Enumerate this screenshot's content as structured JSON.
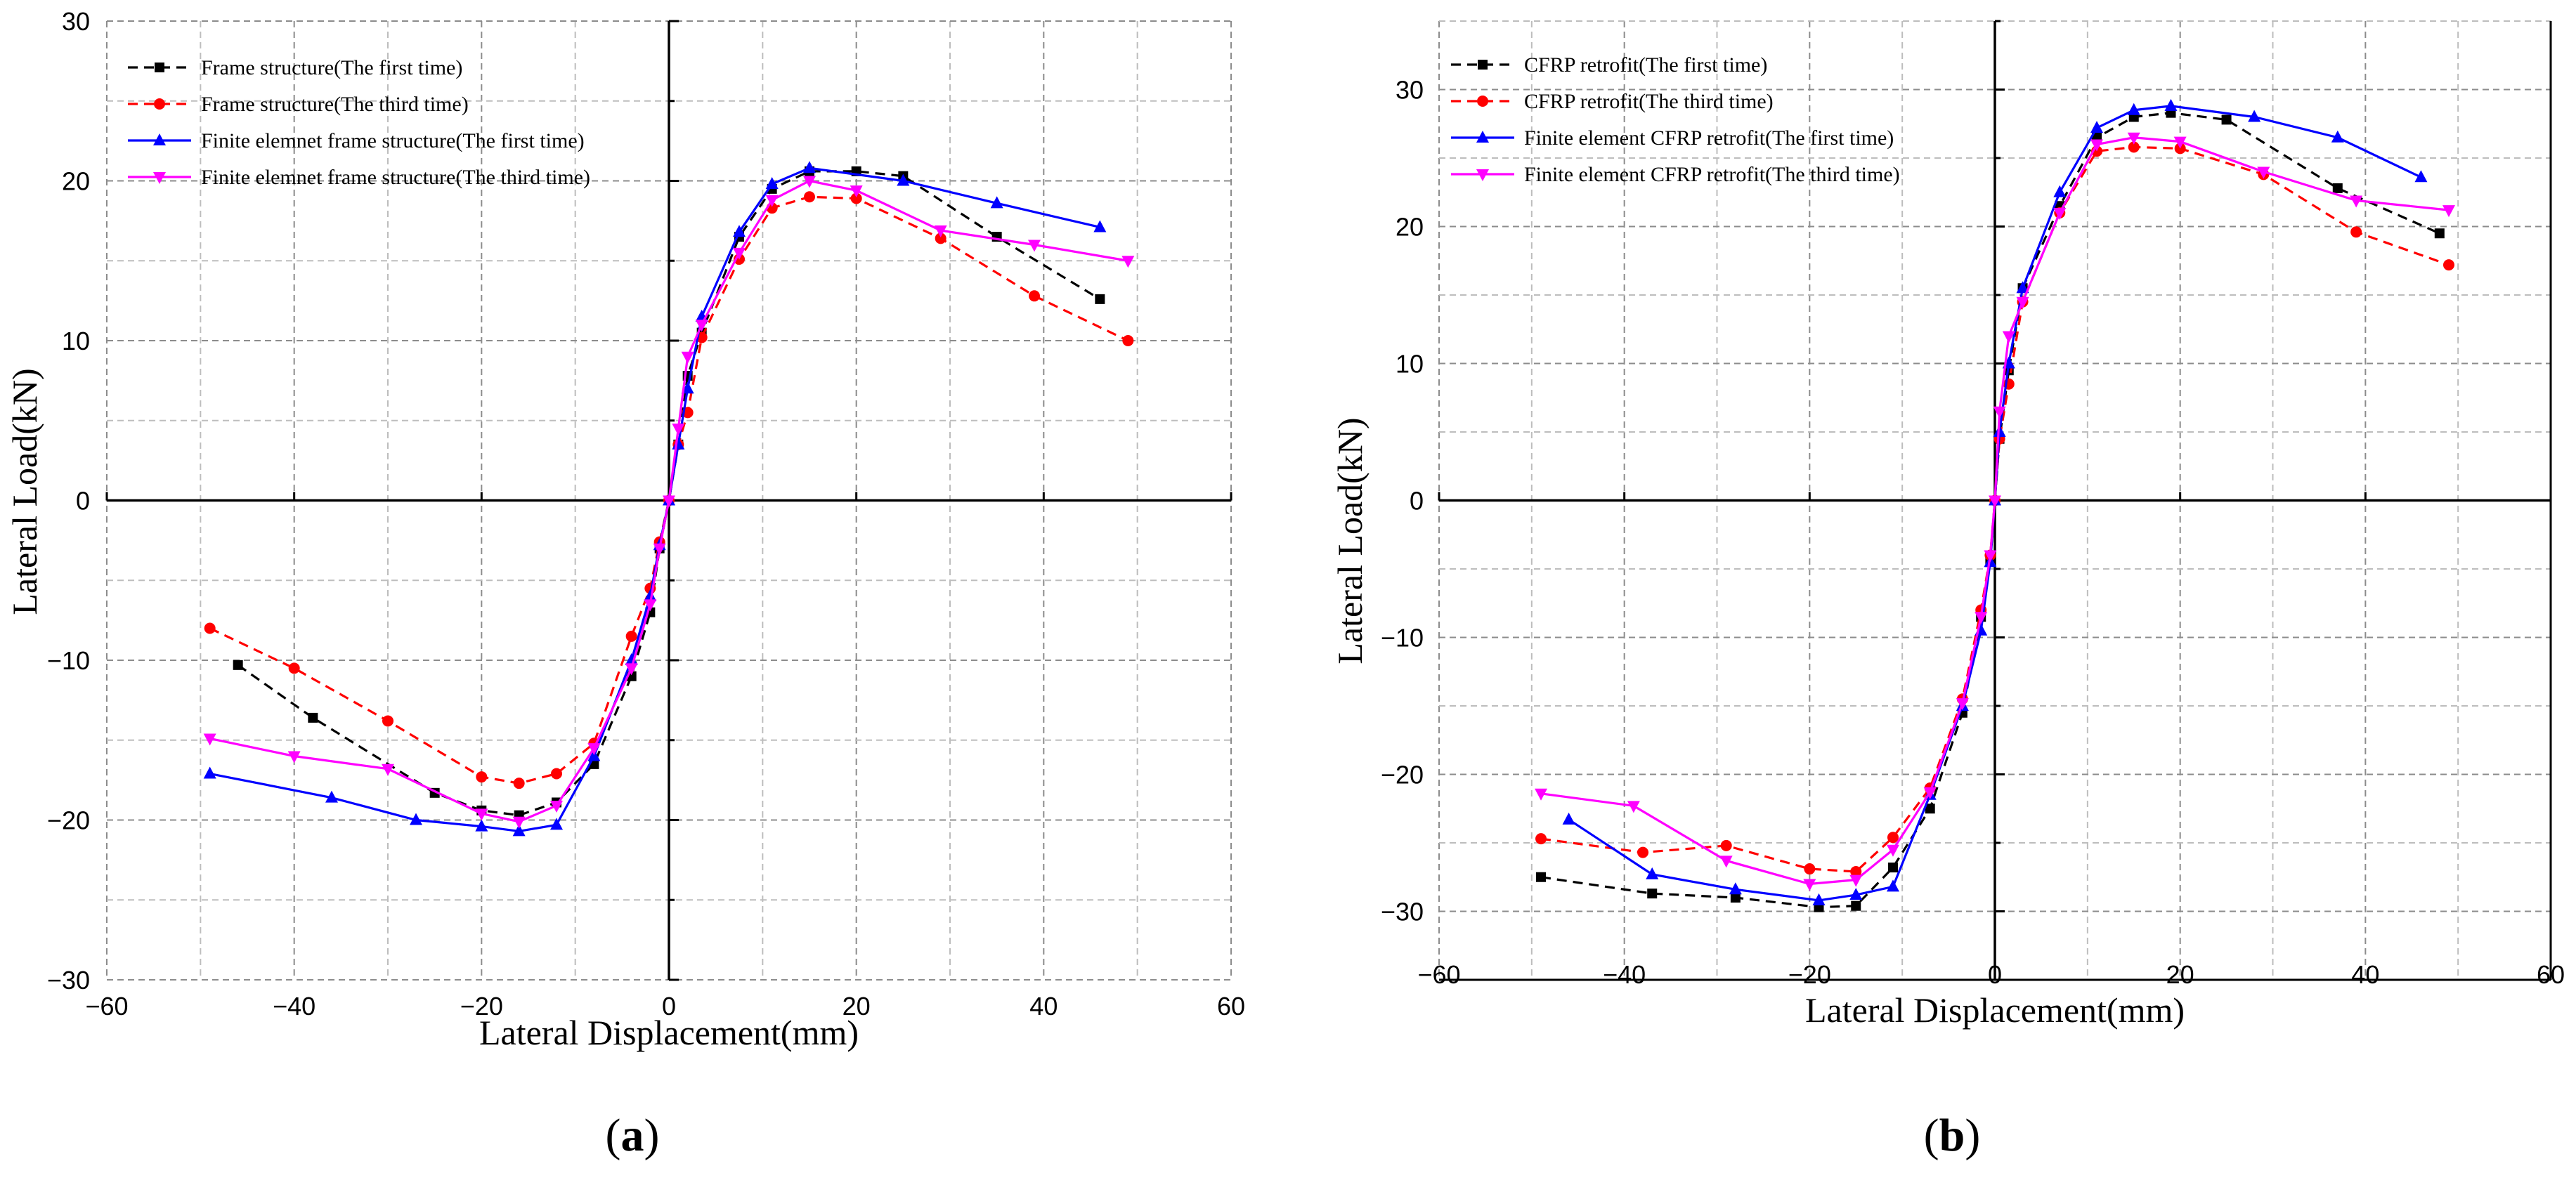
{
  "chart_data": [
    {
      "type": "line",
      "panel_label": "a",
      "xlabel": "Lateral Displacement(mm)",
      "ylabel": "Lateral Load(kN)",
      "xlim": [
        -60,
        60
      ],
      "ylim": [
        -30,
        30
      ],
      "x_ticks": [
        -60,
        -40,
        -20,
        0,
        20,
        40,
        60
      ],
      "x_tick_labels": [
        "−60",
        "−40",
        "−20",
        "0",
        "20",
        "40",
        "60"
      ],
      "y_ticks": [
        -30,
        -20,
        -10,
        0,
        10,
        20,
        30
      ],
      "y_tick_labels": [
        "−30",
        "−20",
        "−10",
        "0",
        "10",
        "20",
        "30"
      ],
      "grid": true,
      "legend_position": "top-left",
      "series": [
        {
          "name": "Frame structure(The first time)",
          "color": "#000000",
          "style": "dashed",
          "marker": "square",
          "x": [
            -46,
            -38,
            -25,
            -20,
            -16,
            -12,
            -8,
            -4,
            -2,
            -1,
            0,
            1,
            2,
            3.5,
            7.5,
            11,
            15,
            20,
            25,
            35,
            46
          ],
          "y": [
            -10.3,
            -13.6,
            -18.3,
            -19.4,
            -19.7,
            -18.9,
            -16.5,
            -11.0,
            -7.0,
            -3.0,
            0,
            3.5,
            7.8,
            10.5,
            16.5,
            19.5,
            20.6,
            20.6,
            20.3,
            16.5,
            12.6
          ]
        },
        {
          "name": "Frame structure(The third time)",
          "color": "#ff0000",
          "style": "dashed",
          "marker": "circle",
          "x": [
            -49,
            -40,
            -30,
            -20,
            -16,
            -12,
            -8,
            -4,
            -2,
            -1,
            0,
            1,
            2,
            3.5,
            7.5,
            11,
            15,
            20,
            29,
            39,
            49
          ],
          "y": [
            -8.0,
            -10.5,
            -13.8,
            -17.3,
            -17.7,
            -17.1,
            -15.2,
            -8.5,
            -5.5,
            -2.6,
            0,
            3.5,
            5.5,
            10.2,
            15.1,
            18.3,
            19.0,
            18.9,
            16.4,
            12.8,
            10.0
          ]
        },
        {
          "name": "Finite elemnet frame structure(The first time)",
          "color": "#0000ff",
          "style": "solid",
          "marker": "triangle-up",
          "x": [
            -49,
            -36,
            -27,
            -20,
            -16,
            -12,
            -8,
            -4,
            -2,
            -1,
            0,
            1,
            2,
            3.5,
            7.5,
            11,
            15,
            25,
            35,
            46
          ],
          "y": [
            -17.1,
            -18.6,
            -20.0,
            -20.4,
            -20.7,
            -20.3,
            -16.0,
            -10.0,
            -6.0,
            -2.8,
            0,
            3.5,
            7.0,
            11.5,
            16.8,
            19.8,
            20.8,
            20.0,
            18.6,
            17.1
          ]
        },
        {
          "name": "Finite elemnet frame structure(The third time)",
          "color": "#ff00ff",
          "style": "solid",
          "marker": "triangle-down",
          "x": [
            -49,
            -40,
            -30,
            -20,
            -16,
            -12,
            -8,
            -4,
            -2,
            -1,
            0,
            1,
            2,
            3.5,
            7.5,
            11,
            15,
            20,
            29,
            39,
            49
          ],
          "y": [
            -14.9,
            -16.0,
            -16.8,
            -19.6,
            -20.1,
            -19.1,
            -15.5,
            -10.5,
            -6.5,
            -3.0,
            0,
            4.5,
            9.0,
            11.0,
            15.5,
            18.8,
            20.0,
            19.4,
            16.9,
            16.0,
            15.0
          ]
        }
      ]
    },
    {
      "type": "line",
      "panel_label": "b",
      "xlabel": "Lateral Displacement(mm)",
      "ylabel": "Lateral Load(kN)",
      "xlim": [
        -60,
        60
      ],
      "ylim": [
        -35,
        35
      ],
      "x_ticks": [
        -60,
        -40,
        -20,
        0,
        20,
        40,
        60
      ],
      "x_tick_labels": [
        "−60",
        "−40",
        "−20",
        "0",
        "20",
        "40",
        "60"
      ],
      "y_ticks": [
        -30,
        -20,
        -10,
        0,
        10,
        20,
        30
      ],
      "y_tick_labels": [
        "−30",
        "−20",
        "−10",
        "0",
        "10",
        "20",
        "30"
      ],
      "grid": true,
      "legend_position": "top-left",
      "series": [
        {
          "name": "CFRP retrofit(The first time)",
          "color": "#000000",
          "style": "dashed",
          "marker": "square",
          "x": [
            -49,
            -37,
            -28,
            -19,
            -15,
            -11,
            -7,
            -3.5,
            -1.5,
            -0.5,
            0,
            0.5,
            1.5,
            3,
            7,
            11,
            15,
            19,
            25,
            37,
            48
          ],
          "y": [
            -27.5,
            -28.7,
            -29.0,
            -29.7,
            -29.6,
            -26.8,
            -22.5,
            -15.5,
            -8.5,
            -4.5,
            0,
            4.5,
            9.5,
            15.5,
            21.5,
            26.5,
            28.0,
            28.3,
            27.8,
            22.8,
            19.5
          ]
        },
        {
          "name": "CFRP retrofit(The third time)",
          "color": "#ff0000",
          "style": "dashed",
          "marker": "circle",
          "x": [
            -49,
            -38,
            -29,
            -20,
            -15,
            -11,
            -7,
            -3.5,
            -1.5,
            -0.5,
            0,
            0.5,
            1.5,
            3,
            7,
            11,
            15,
            20,
            29,
            39,
            49
          ],
          "y": [
            -24.7,
            -25.7,
            -25.2,
            -26.9,
            -27.1,
            -24.6,
            -21.0,
            -14.5,
            -8.0,
            -4.0,
            0,
            4.5,
            8.5,
            14.5,
            21.0,
            25.5,
            25.8,
            25.7,
            23.8,
            19.6,
            17.2
          ]
        },
        {
          "name": "Finite element CFRP retrofit(The first time)",
          "color": "#0000ff",
          "style": "solid",
          "marker": "triangle-up",
          "x": [
            -46,
            -37,
            -28,
            -19,
            -15,
            -11,
            -7,
            -3.5,
            -1.5,
            -0.5,
            0,
            0.5,
            1.5,
            3,
            7,
            11,
            15,
            19,
            28,
            37,
            46
          ],
          "y": [
            -23.3,
            -27.3,
            -28.4,
            -29.2,
            -28.8,
            -28.2,
            -21.5,
            -15.0,
            -9.5,
            -4.5,
            0,
            5.0,
            10.0,
            15.5,
            22.5,
            27.2,
            28.5,
            28.8,
            28.0,
            26.5,
            23.6
          ]
        },
        {
          "name": "Finite element CFRP retrofit(The third time)",
          "color": "#ff00ff",
          "style": "solid",
          "marker": "triangle-down",
          "x": [
            -49,
            -39,
            -29,
            -20,
            -15,
            -11,
            -7,
            -3.5,
            -1.5,
            -0.5,
            0,
            0.5,
            1.5,
            3,
            7,
            11,
            15,
            20,
            29,
            39,
            49
          ],
          "y": [
            -21.4,
            -22.3,
            -26.3,
            -28.0,
            -27.7,
            -25.5,
            -21.3,
            -14.8,
            -8.5,
            -4.0,
            0,
            6.5,
            12.0,
            14.5,
            21.0,
            26.0,
            26.5,
            26.2,
            24.0,
            21.9,
            21.2
          ]
        }
      ]
    }
  ]
}
